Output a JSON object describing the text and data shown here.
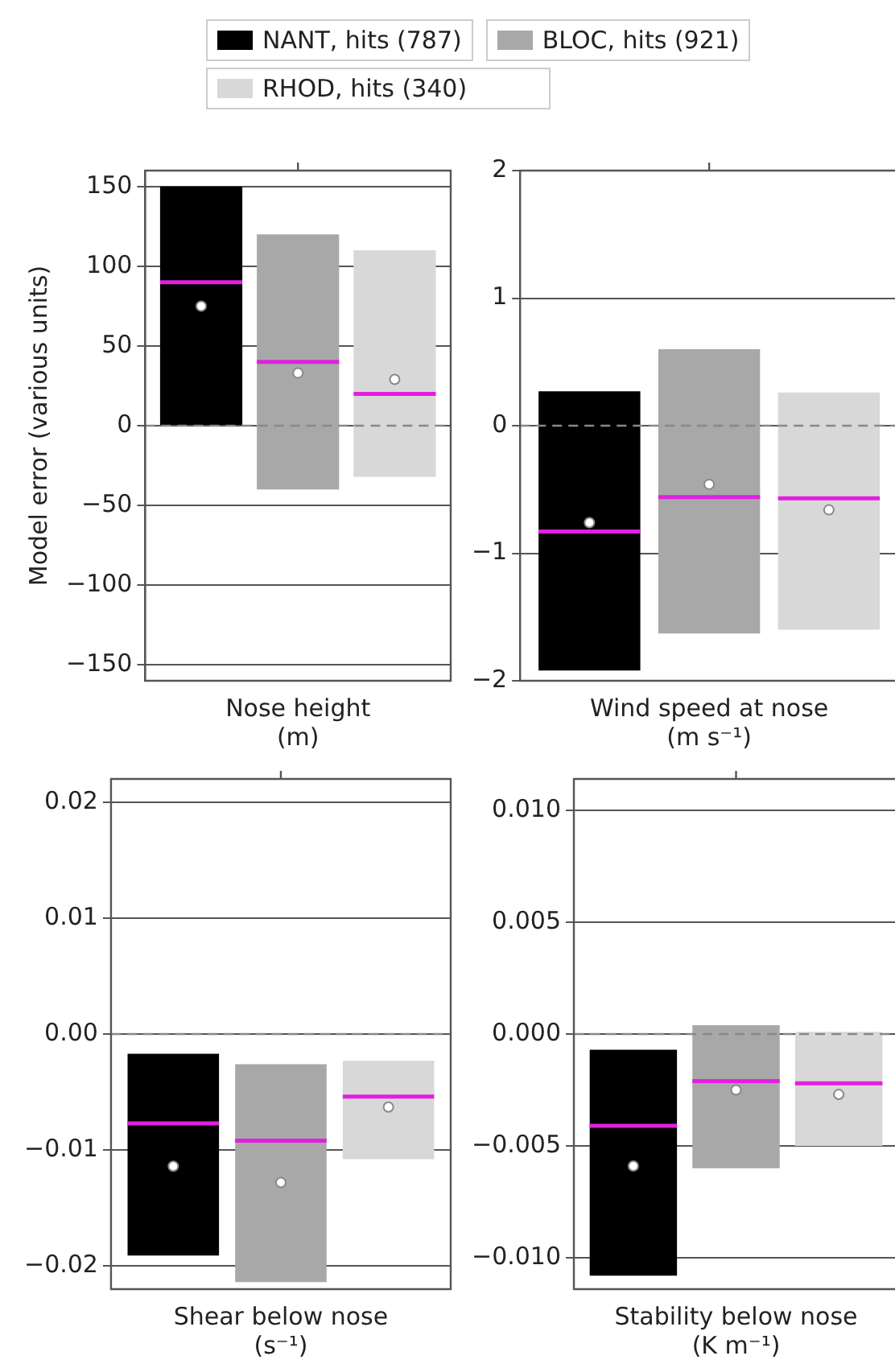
{
  "chart_data": [
    {
      "type": "box",
      "xlabel": "Nose height\n(m)",
      "ylabel": "Model error (various units)",
      "categories": [
        null
      ],
      "legend": "top",
      "grid": "y",
      "ylim": [
        -160,
        160
      ],
      "yticks": [
        {
          "value": -150,
          "label": "−150"
        },
        {
          "value": -100,
          "label": "−100"
        },
        {
          "value": -50,
          "label": "−50"
        },
        0,
        50,
        100,
        150
      ],
      "ref_lines": [
        {
          "axis": "y",
          "value": 0,
          "line_style": "dashed",
          "color": "#888888"
        }
      ],
      "series": [
        {
          "name": "NANT, hits (787)",
          "color": "#000000",
          "boxes": [
            {
              "low": 0,
              "q1": 0,
              "median": 90,
              "q3": 150,
              "high": 150,
              "mean": 75
            }
          ]
        },
        {
          "name": "BLOC, hits (921)",
          "color": "#a8a8a8",
          "boxes": [
            {
              "low": -40,
              "q1": -40,
              "median": 40,
              "q3": 120,
              "high": 120,
              "mean": 33
            }
          ]
        },
        {
          "name": "RHOD, hits (340)",
          "color": "#d8d8d8",
          "boxes": [
            {
              "low": -32,
              "q1": -32,
              "median": 20,
              "q3": 110,
              "high": 110,
              "mean": 29
            }
          ]
        }
      ]
    },
    {
      "type": "box",
      "xlabel": "Wind speed at nose\n(m s⁻¹)",
      "categories": [
        null
      ],
      "grid": "y",
      "ylim": [
        -2,
        2
      ],
      "yticks": [
        {
          "value": -2,
          "label": "−2"
        },
        {
          "value": -1,
          "label": "−1"
        },
        0,
        1,
        2
      ],
      "ref_lines": [
        {
          "axis": "y",
          "value": 0,
          "line_style": "dashed",
          "color": "#888888"
        }
      ],
      "series": [
        {
          "color": "#000000",
          "boxes": [
            {
              "low": -1.92,
              "q1": -1.92,
              "median": -0.83,
              "q3": 0.27,
              "high": 0.27,
              "mean": -0.76
            }
          ]
        },
        {
          "color": "#a8a8a8",
          "boxes": [
            {
              "low": -1.63,
              "q1": -1.63,
              "median": -0.56,
              "q3": 0.6,
              "high": 0.6,
              "mean": -0.46
            }
          ]
        },
        {
          "color": "#d8d8d8",
          "boxes": [
            {
              "low": -1.6,
              "q1": -1.6,
              "median": -0.57,
              "q3": 0.26,
              "high": 0.26,
              "mean": -0.66
            }
          ]
        }
      ]
    },
    {
      "type": "box",
      "xlabel": "Shear below nose\n(s⁻¹)",
      "categories": [
        null
      ],
      "grid": "y",
      "ylim": [
        -0.022,
        0.022
      ],
      "yticks": [
        {
          "value": -0.02,
          "label": "−0.02"
        },
        {
          "value": -0.01,
          "label": "−0.01"
        },
        {
          "value": 0,
          "label": "0.00"
        },
        {
          "value": 0.01,
          "label": "0.01"
        },
        {
          "value": 0.02,
          "label": "0.02"
        }
      ],
      "ref_lines": [
        {
          "axis": "y",
          "value": 0,
          "line_style": "dashed",
          "color": "#888888"
        }
      ],
      "series": [
        {
          "color": "#000000",
          "boxes": [
            {
              "low": -0.0191,
              "q1": -0.0191,
              "median": -0.0077,
              "q3": -0.0017,
              "high": -0.0017,
              "mean": -0.0114
            }
          ]
        },
        {
          "color": "#a8a8a8",
          "boxes": [
            {
              "low": -0.0214,
              "q1": -0.0214,
              "median": -0.0092,
              "q3": -0.0026,
              "high": -0.0026,
              "mean": -0.0128
            }
          ]
        },
        {
          "color": "#d8d8d8",
          "boxes": [
            {
              "low": -0.0108,
              "q1": -0.0108,
              "median": -0.0054,
              "q3": -0.0023,
              "high": -0.0023,
              "mean": -0.0063
            }
          ]
        }
      ]
    },
    {
      "type": "box",
      "xlabel": "Stability below nose\n(K m⁻¹)",
      "categories": [
        null
      ],
      "grid": "y",
      "ylim": [
        -0.0114,
        0.0114
      ],
      "yticks": [
        {
          "value": -0.01,
          "label": "−0.010"
        },
        {
          "value": -0.005,
          "label": "−0.005"
        },
        {
          "value": 0,
          "label": "0.000"
        },
        {
          "value": 0.005,
          "label": "0.005"
        },
        {
          "value": 0.01,
          "label": "0.010"
        }
      ],
      "ref_lines": [
        {
          "axis": "y",
          "value": 0,
          "line_style": "dashed",
          "color": "#888888"
        }
      ],
      "series": [
        {
          "color": "#000000",
          "boxes": [
            {
              "low": -0.0108,
              "q1": -0.0108,
              "median": -0.0041,
              "q3": -0.0007,
              "high": -0.0007,
              "mean": -0.0059
            }
          ]
        },
        {
          "color": "#a8a8a8",
          "boxes": [
            {
              "low": -0.006,
              "q1": -0.006,
              "median": -0.0021,
              "q3": 0.0004,
              "high": 0.0004,
              "mean": -0.0025
            }
          ]
        },
        {
          "color": "#d8d8d8",
          "boxes": [
            {
              "low": -0.005,
              "q1": -0.005,
              "median": -0.0022,
              "q3": 0.0001,
              "high": 0.0001,
              "mean": -0.0027
            }
          ]
        }
      ]
    }
  ]
}
